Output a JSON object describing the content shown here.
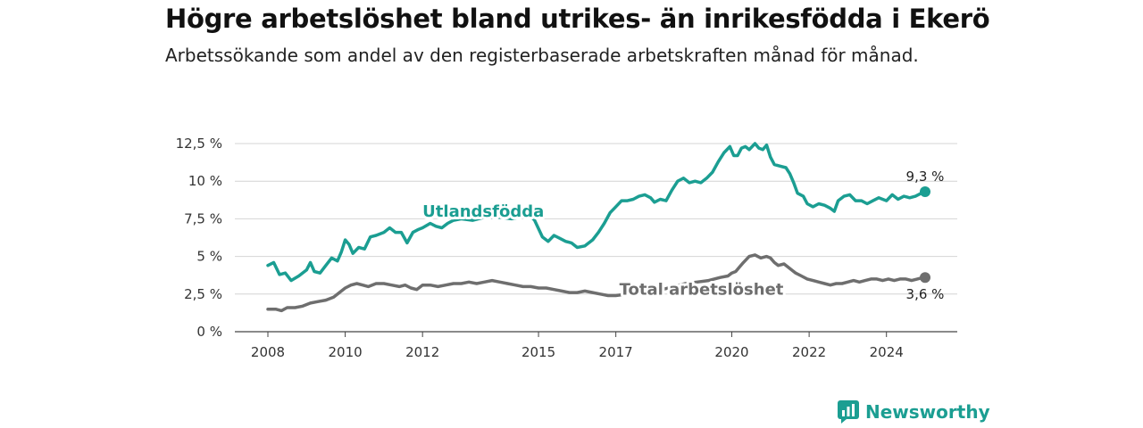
{
  "header": {
    "title": "Högre arbetslöshet bland utrikes- än inrikesfödda i Ekerö",
    "subtitle": "Arbetssökande som andel av den registerbaserade arbetskraften månad för månad."
  },
  "brand": {
    "name": "Newsworthy",
    "icon": "newsworthy-logo-icon",
    "color": "#1b9e92"
  },
  "chart_data": {
    "type": "line",
    "title": "Högre arbetslöshet bland utrikes- än inrikesfödda i Ekerö",
    "subtitle": "Arbetssökande som andel av den registerbaserade arbetskraften månad för månad.",
    "xlabel": "",
    "ylabel": "",
    "xlim": [
      2008,
      2025
    ],
    "ylim": [
      0,
      12.5
    ],
    "x_ticks": [
      2008,
      2010,
      2012,
      2015,
      2017,
      2020,
      2022,
      2024
    ],
    "y_ticks": [
      {
        "value": 0,
        "label": "0 %"
      },
      {
        "value": 2.5,
        "label": "2,5 %"
      },
      {
        "value": 5,
        "label": "5 %"
      },
      {
        "value": 7.5,
        "label": "7,5 %"
      },
      {
        "value": 10,
        "label": "10 %"
      },
      {
        "value": 12.5,
        "label": "12,5 %"
      }
    ],
    "grid": true,
    "legend": "inline labels",
    "series": [
      {
        "name": "Utlandsfödda",
        "color": "#1b9e92",
        "end_label": "9,3 %",
        "points": [
          [
            2008.0,
            4.4
          ],
          [
            2008.15,
            4.6
          ],
          [
            2008.3,
            3.8
          ],
          [
            2008.45,
            3.9
          ],
          [
            2008.6,
            3.4
          ],
          [
            2008.8,
            3.7
          ],
          [
            2009.0,
            4.1
          ],
          [
            2009.1,
            4.6
          ],
          [
            2009.2,
            4.0
          ],
          [
            2009.35,
            3.9
          ],
          [
            2009.5,
            4.4
          ],
          [
            2009.65,
            4.9
          ],
          [
            2009.8,
            4.7
          ],
          [
            2009.9,
            5.3
          ],
          [
            2010.0,
            6.1
          ],
          [
            2010.1,
            5.8
          ],
          [
            2010.2,
            5.2
          ],
          [
            2010.35,
            5.6
          ],
          [
            2010.5,
            5.5
          ],
          [
            2010.65,
            6.3
          ],
          [
            2010.8,
            6.4
          ],
          [
            2011.0,
            6.6
          ],
          [
            2011.15,
            6.9
          ],
          [
            2011.3,
            6.6
          ],
          [
            2011.45,
            6.6
          ],
          [
            2011.6,
            5.9
          ],
          [
            2011.75,
            6.6
          ],
          [
            2011.9,
            6.8
          ],
          [
            2012.0,
            6.9
          ],
          [
            2012.2,
            7.2
          ],
          [
            2012.35,
            7.0
          ],
          [
            2012.5,
            6.9
          ],
          [
            2012.65,
            7.2
          ],
          [
            2012.8,
            7.4
          ],
          [
            2013.0,
            7.5
          ],
          [
            2013.3,
            7.4
          ],
          [
            2013.6,
            7.6
          ],
          [
            2014.0,
            7.6
          ],
          [
            2014.3,
            7.5
          ],
          [
            2014.5,
            7.6
          ],
          [
            2014.75,
            7.8
          ],
          [
            2014.9,
            7.4
          ],
          [
            2015.1,
            6.3
          ],
          [
            2015.25,
            6.0
          ],
          [
            2015.4,
            6.4
          ],
          [
            2015.55,
            6.2
          ],
          [
            2015.7,
            6.0
          ],
          [
            2015.85,
            5.9
          ],
          [
            2016.0,
            5.6
          ],
          [
            2016.2,
            5.7
          ],
          [
            2016.4,
            6.1
          ],
          [
            2016.55,
            6.6
          ],
          [
            2016.7,
            7.2
          ],
          [
            2016.85,
            7.9
          ],
          [
            2017.0,
            8.3
          ],
          [
            2017.15,
            8.7
          ],
          [
            2017.3,
            8.7
          ],
          [
            2017.45,
            8.8
          ],
          [
            2017.6,
            9.0
          ],
          [
            2017.75,
            9.1
          ],
          [
            2017.9,
            8.9
          ],
          [
            2018.0,
            8.6
          ],
          [
            2018.15,
            8.8
          ],
          [
            2018.3,
            8.7
          ],
          [
            2018.45,
            9.4
          ],
          [
            2018.6,
            10.0
          ],
          [
            2018.75,
            10.2
          ],
          [
            2018.9,
            9.9
          ],
          [
            2019.05,
            10.0
          ],
          [
            2019.2,
            9.9
          ],
          [
            2019.35,
            10.2
          ],
          [
            2019.5,
            10.6
          ],
          [
            2019.65,
            11.3
          ],
          [
            2019.8,
            11.9
          ],
          [
            2019.95,
            12.3
          ],
          [
            2020.05,
            11.7
          ],
          [
            2020.15,
            11.7
          ],
          [
            2020.25,
            12.2
          ],
          [
            2020.35,
            12.3
          ],
          [
            2020.45,
            12.1
          ],
          [
            2020.6,
            12.5
          ],
          [
            2020.7,
            12.2
          ],
          [
            2020.8,
            12.1
          ],
          [
            2020.9,
            12.4
          ],
          [
            2021.0,
            11.6
          ],
          [
            2021.1,
            11.1
          ],
          [
            2021.25,
            11.0
          ],
          [
            2021.4,
            10.9
          ],
          [
            2021.5,
            10.5
          ],
          [
            2021.6,
            9.9
          ],
          [
            2021.7,
            9.2
          ],
          [
            2021.85,
            9.0
          ],
          [
            2021.95,
            8.5
          ],
          [
            2022.1,
            8.3
          ],
          [
            2022.25,
            8.5
          ],
          [
            2022.4,
            8.4
          ],
          [
            2022.55,
            8.2
          ],
          [
            2022.65,
            8.0
          ],
          [
            2022.75,
            8.7
          ],
          [
            2022.9,
            9.0
          ],
          [
            2023.05,
            9.1
          ],
          [
            2023.2,
            8.7
          ],
          [
            2023.35,
            8.7
          ],
          [
            2023.5,
            8.5
          ],
          [
            2023.65,
            8.7
          ],
          [
            2023.8,
            8.9
          ],
          [
            2024.0,
            8.7
          ],
          [
            2024.15,
            9.1
          ],
          [
            2024.3,
            8.8
          ],
          [
            2024.45,
            9.0
          ],
          [
            2024.6,
            8.9
          ],
          [
            2024.75,
            9.0
          ],
          [
            2024.9,
            9.2
          ],
          [
            2025.0,
            9.3
          ]
        ]
      },
      {
        "name": "Total arbetslöshet",
        "color": "#6e6e6e",
        "end_label": "3,6 %",
        "points": [
          [
            2008.0,
            1.5
          ],
          [
            2008.2,
            1.5
          ],
          [
            2008.35,
            1.4
          ],
          [
            2008.5,
            1.6
          ],
          [
            2008.7,
            1.6
          ],
          [
            2008.9,
            1.7
          ],
          [
            2009.1,
            1.9
          ],
          [
            2009.3,
            2.0
          ],
          [
            2009.5,
            2.1
          ],
          [
            2009.7,
            2.3
          ],
          [
            2009.9,
            2.7
          ],
          [
            2010.0,
            2.9
          ],
          [
            2010.15,
            3.1
          ],
          [
            2010.3,
            3.2
          ],
          [
            2010.45,
            3.1
          ],
          [
            2010.6,
            3.0
          ],
          [
            2010.8,
            3.2
          ],
          [
            2011.0,
            3.2
          ],
          [
            2011.2,
            3.1
          ],
          [
            2011.4,
            3.0
          ],
          [
            2011.55,
            3.1
          ],
          [
            2011.7,
            2.9
          ],
          [
            2011.85,
            2.8
          ],
          [
            2012.0,
            3.1
          ],
          [
            2012.2,
            3.1
          ],
          [
            2012.4,
            3.0
          ],
          [
            2012.6,
            3.1
          ],
          [
            2012.8,
            3.2
          ],
          [
            2013.0,
            3.2
          ],
          [
            2013.2,
            3.3
          ],
          [
            2013.4,
            3.2
          ],
          [
            2013.6,
            3.3
          ],
          [
            2013.8,
            3.4
          ],
          [
            2014.0,
            3.3
          ],
          [
            2014.2,
            3.2
          ],
          [
            2014.4,
            3.1
          ],
          [
            2014.6,
            3.0
          ],
          [
            2014.8,
            3.0
          ],
          [
            2015.0,
            2.9
          ],
          [
            2015.2,
            2.9
          ],
          [
            2015.4,
            2.8
          ],
          [
            2015.6,
            2.7
          ],
          [
            2015.8,
            2.6
          ],
          [
            2016.0,
            2.6
          ],
          [
            2016.2,
            2.7
          ],
          [
            2016.4,
            2.6
          ],
          [
            2016.6,
            2.5
          ],
          [
            2016.8,
            2.4
          ],
          [
            2017.0,
            2.4
          ],
          [
            2017.3,
            2.5
          ],
          [
            2017.6,
            2.6
          ],
          [
            2017.9,
            2.7
          ],
          [
            2018.2,
            2.8
          ],
          [
            2018.5,
            3.0
          ],
          [
            2018.8,
            3.2
          ],
          [
            2019.1,
            3.3
          ],
          [
            2019.4,
            3.4
          ],
          [
            2019.7,
            3.6
          ],
          [
            2019.9,
            3.7
          ],
          [
            2020.0,
            3.9
          ],
          [
            2020.1,
            4.0
          ],
          [
            2020.2,
            4.3
          ],
          [
            2020.3,
            4.6
          ],
          [
            2020.45,
            5.0
          ],
          [
            2020.6,
            5.1
          ],
          [
            2020.75,
            4.9
          ],
          [
            2020.9,
            5.0
          ],
          [
            2021.0,
            4.9
          ],
          [
            2021.1,
            4.6
          ],
          [
            2021.2,
            4.4
          ],
          [
            2021.35,
            4.5
          ],
          [
            2021.5,
            4.2
          ],
          [
            2021.65,
            3.9
          ],
          [
            2021.8,
            3.7
          ],
          [
            2021.95,
            3.5
          ],
          [
            2022.1,
            3.4
          ],
          [
            2022.25,
            3.3
          ],
          [
            2022.4,
            3.2
          ],
          [
            2022.55,
            3.1
          ],
          [
            2022.7,
            3.2
          ],
          [
            2022.85,
            3.2
          ],
          [
            2023.0,
            3.3
          ],
          [
            2023.15,
            3.4
          ],
          [
            2023.3,
            3.3
          ],
          [
            2023.45,
            3.4
          ],
          [
            2023.6,
            3.5
          ],
          [
            2023.75,
            3.5
          ],
          [
            2023.9,
            3.4
          ],
          [
            2024.05,
            3.5
          ],
          [
            2024.2,
            3.4
          ],
          [
            2024.35,
            3.5
          ],
          [
            2024.5,
            3.5
          ],
          [
            2024.65,
            3.4
          ],
          [
            2024.8,
            3.5
          ],
          [
            2024.95,
            3.6
          ],
          [
            2025.0,
            3.6
          ]
        ]
      }
    ]
  }
}
